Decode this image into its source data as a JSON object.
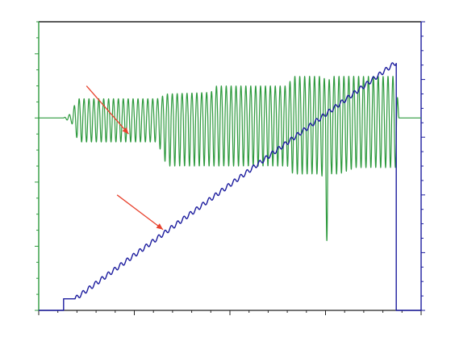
{
  "chart_data": {
    "type": "line",
    "title": "",
    "xlabel": "",
    "ylabel_left": "",
    "ylabel_right": "",
    "xlim": [
      0,
      100
    ],
    "ylim_left": [
      -12,
      6
    ],
    "ylim_right": [
      0,
      100
    ],
    "grid": false,
    "legend": "none",
    "x_ticks": [
      0,
      25,
      50,
      75,
      100
    ],
    "x_minor_step": 5,
    "y_left_major": [
      -12,
      -8,
      -4,
      0,
      4
    ],
    "y_right_major": [
      0,
      20,
      40,
      60,
      80,
      100
    ],
    "colors": {
      "oscillation": "#2e9a3e",
      "ramp": "#1c1c9e",
      "left_axis": "#2e9a3e",
      "right_axis": "#1c1c9e",
      "top_frame": "#222222",
      "arrows": "#e8412c"
    },
    "series": [
      {
        "axis": "left",
        "color": "#2e9a3e",
        "baseline": 0,
        "x": [
          0,
          6.5,
          8.6,
          9.5,
          10.5,
          31,
          33.5,
          45,
          46.5,
          65,
          66.5,
          74,
          75,
          75.5,
          76,
          76.5,
          78.5,
          83,
          93.5,
          94.2,
          100
        ],
        "amp_upper": [
          0,
          0,
          0.3,
          0.9,
          1.2,
          1.2,
          1.5,
          1.6,
          2.0,
          2.0,
          2.6,
          2.6,
          2.4,
          2.3,
          2.4,
          2.6,
          2.6,
          2.6,
          2.6,
          0,
          0
        ],
        "amp_lower": [
          0,
          0,
          0.3,
          1.0,
          1.5,
          1.5,
          3.0,
          3.0,
          3.0,
          3.0,
          3.5,
          3.5,
          6.0,
          8.5,
          6.0,
          3.5,
          3.5,
          3.1,
          3.1,
          0,
          0
        ],
        "cycles_per_unit": 0.78
      },
      {
        "axis": "right",
        "color": "#1c1c9e",
        "x": [
          0,
          6.5,
          6.5,
          9.5,
          93.5,
          93.5,
          100
        ],
        "y": [
          0,
          0,
          4,
          4,
          86,
          0,
          0
        ],
        "ripple_amplitude": 0.8,
        "ripple_period": 1.65
      }
    ],
    "annotations": [
      {
        "type": "arrow",
        "color": "#e8412c",
        "from": [
          12.5,
          2.0
        ],
        "to": [
          23.5,
          -1.0
        ],
        "axis": "left"
      },
      {
        "type": "arrow",
        "color": "#e8412c",
        "from": [
          20.5,
          40
        ],
        "to": [
          32.5,
          28
        ],
        "axis": "right"
      }
    ]
  }
}
